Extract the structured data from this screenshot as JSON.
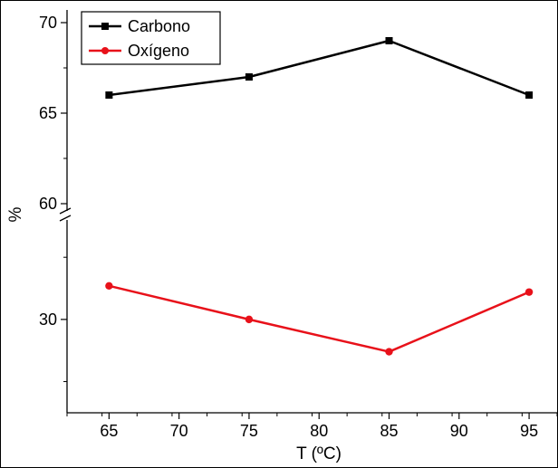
{
  "chart_data": {
    "type": "line",
    "xlabel": "T (ºC)",
    "ylabel": "%",
    "xlim": [
      62,
      97
    ],
    "x_ticks": [
      65,
      70,
      75,
      80,
      85,
      90,
      95
    ],
    "y_axis_break": true,
    "upper_segment": {
      "ylim": [
        59.6,
        70
      ],
      "ticks": [
        60,
        65,
        70
      ]
    },
    "lower_segment": {
      "ylim": [
        23,
        38
      ],
      "ticks": [
        30
      ]
    },
    "legend_position": "top-left",
    "series": [
      {
        "name": "Carbono",
        "color": "#000000",
        "marker": "square",
        "x": [
          65,
          75,
          85,
          95
        ],
        "y": [
          66.0,
          67.0,
          69.0,
          66.0
        ]
      },
      {
        "name": "Oxígeno",
        "color": "#e8111a",
        "marker": "circle",
        "x": [
          65,
          75,
          85,
          95
        ],
        "y": [
          32.7,
          30.0,
          27.4,
          32.2
        ]
      }
    ]
  }
}
